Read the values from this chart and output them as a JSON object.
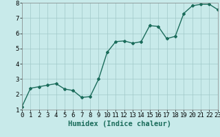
{
  "x": [
    0,
    1,
    2,
    3,
    4,
    5,
    6,
    7,
    8,
    9,
    10,
    11,
    12,
    13,
    14,
    15,
    16,
    17,
    18,
    19,
    20,
    21,
    22,
    23
  ],
  "y": [
    1.2,
    2.4,
    2.5,
    2.6,
    2.7,
    2.35,
    2.25,
    1.8,
    1.85,
    3.0,
    4.75,
    5.45,
    5.5,
    5.35,
    5.45,
    6.5,
    6.45,
    5.65,
    5.8,
    7.3,
    7.8,
    7.9,
    7.9,
    7.55
  ],
  "line_color": "#1a6b5a",
  "marker": "D",
  "marker_size": 2.0,
  "bg_color": "#c8eaea",
  "grid_color": "#a0c8c8",
  "xlabel": "Humidex (Indice chaleur)",
  "ylabel": "",
  "title": "",
  "xlim": [
    0,
    23
  ],
  "ylim": [
    1,
    8
  ],
  "yticks": [
    1,
    2,
    3,
    4,
    5,
    6,
    7,
    8
  ],
  "xticks": [
    0,
    1,
    2,
    3,
    4,
    5,
    6,
    7,
    8,
    9,
    10,
    11,
    12,
    13,
    14,
    15,
    16,
    17,
    18,
    19,
    20,
    21,
    22,
    23
  ],
  "xlabel_fontsize": 7.5,
  "tick_fontsize": 6.5,
  "line_width": 1.0
}
